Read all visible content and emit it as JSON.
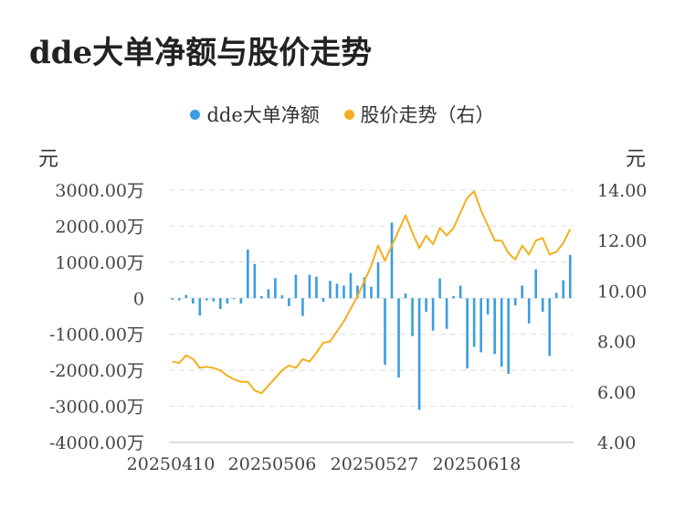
{
  "title": "dde大单净额与股价走势",
  "legend": {
    "series1": "dde大单净额",
    "series2": "股价走势（右）"
  },
  "units": {
    "left": "元",
    "right": "元"
  },
  "colors": {
    "bar": "#3a9de0",
    "line": "#f2b01e",
    "grid": "#e3e3e3"
  },
  "chart_data": {
    "type": "bar",
    "ylim": [
      -4000,
      3000
    ],
    "y2lim": [
      4,
      14
    ],
    "yticks": [
      "3000.00万",
      "2000.00万",
      "1000.00万",
      "0",
      "-1000.00万",
      "-2000.00万",
      "-3000.00万",
      "-4000.00万"
    ],
    "y2ticks": [
      "14.00",
      "12.00",
      "10.00",
      "8.00",
      "6.00",
      "4.00"
    ],
    "xticks": [
      "20250410",
      "20250506",
      "20250527",
      "20250618"
    ],
    "series": [
      {
        "name": "dde大单净额",
        "type": "bar",
        "values": [
          -40,
          -60,
          90,
          -150,
          -480,
          -60,
          -90,
          -300,
          -150,
          0,
          -150,
          1350,
          950,
          60,
          250,
          560,
          80,
          -220,
          650,
          -490,
          650,
          600,
          -100,
          480,
          400,
          350,
          700,
          350,
          580,
          320,
          1000,
          -1850,
          2100,
          -2200,
          130,
          -1050,
          -3100,
          -380,
          -900,
          550,
          -850,
          60,
          350,
          -1950,
          -1350,
          -1500,
          -450,
          -1550,
          -1900,
          -2100,
          -200,
          350,
          -700,
          800,
          -380,
          -1600,
          150,
          500,
          1200
        ]
      },
      {
        "name": "股价走势（右）",
        "type": "line",
        "values": [
          7.2,
          7.15,
          7.45,
          7.3,
          6.95,
          7.0,
          6.95,
          6.85,
          6.65,
          6.5,
          6.4,
          6.4,
          6.05,
          5.95,
          6.25,
          6.55,
          6.85,
          7.05,
          6.95,
          7.3,
          7.2,
          7.55,
          7.95,
          8.0,
          8.4,
          8.8,
          9.3,
          9.8,
          10.4,
          11.0,
          11.8,
          11.2,
          11.8,
          12.4,
          13.0,
          12.3,
          11.7,
          12.2,
          11.85,
          12.5,
          12.2,
          12.5,
          13.1,
          13.7,
          13.95,
          13.2,
          12.6,
          12.0,
          12.0,
          11.5,
          11.25,
          11.8,
          11.45,
          12.0,
          12.1,
          11.45,
          11.55,
          11.9,
          12.45
        ]
      }
    ]
  }
}
